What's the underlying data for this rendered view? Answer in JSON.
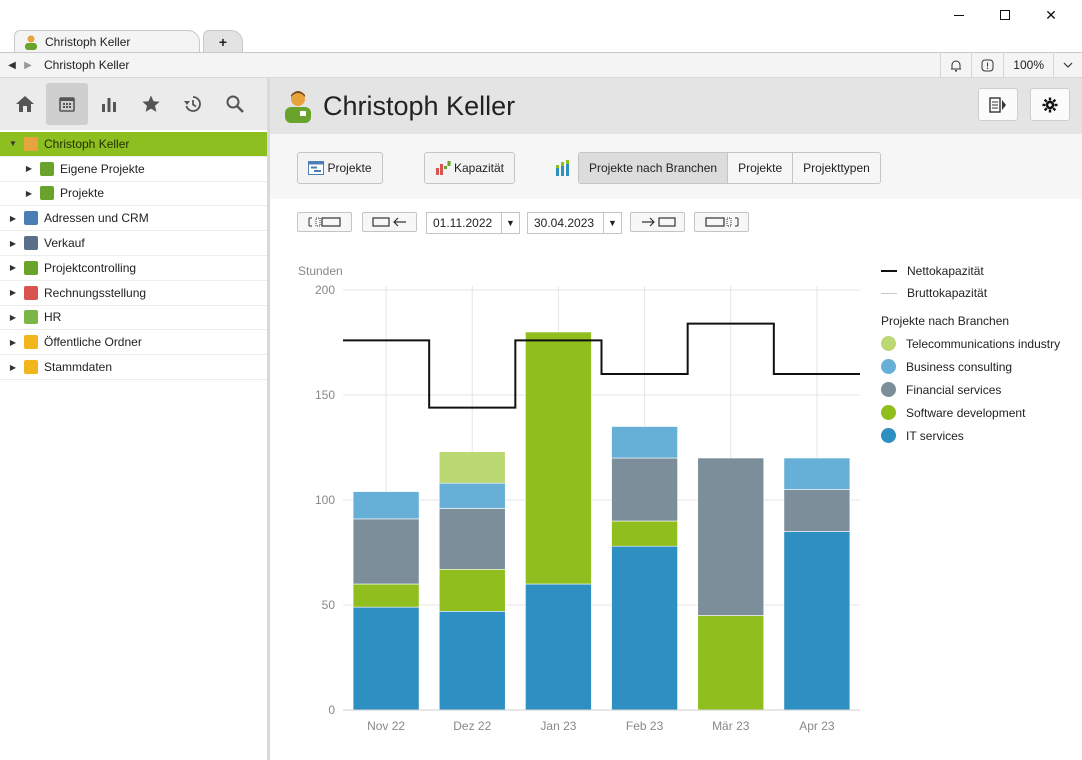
{
  "window": {
    "tab_title": "Christoph Keller",
    "tab_add": "+",
    "address": "Christoph Keller",
    "zoom": "100%",
    "close": "✕"
  },
  "sidebar": {
    "tools": [
      {
        "name": "home-icon"
      },
      {
        "name": "calendar-icon"
      },
      {
        "name": "bar-chart-icon"
      },
      {
        "name": "star-icon"
      },
      {
        "name": "history-icon"
      },
      {
        "name": "search-icon"
      }
    ],
    "items": [
      {
        "label": "Christoph Keller",
        "level": 0,
        "expanded": true,
        "selected": true,
        "icon": "person-icon",
        "color": "#e6a33e"
      },
      {
        "label": "Eigene Projekte",
        "level": 1,
        "expanded": false,
        "selected": false,
        "icon": "project-icon",
        "color": "#6aa32b"
      },
      {
        "label": "Projekte",
        "level": 1,
        "expanded": false,
        "selected": false,
        "icon": "project-icon",
        "color": "#6aa32b"
      },
      {
        "label": "Adressen und CRM",
        "level": 0,
        "expanded": false,
        "selected": false,
        "icon": "contacts-icon",
        "color": "#4a7fb5"
      },
      {
        "label": "Verkauf",
        "level": 0,
        "expanded": false,
        "selected": false,
        "icon": "sales-icon",
        "color": "#5a6f8a"
      },
      {
        "label": "Projektcontrolling",
        "level": 0,
        "expanded": false,
        "selected": false,
        "icon": "controlling-icon",
        "color": "#6aa32b"
      },
      {
        "label": "Rechnungsstellung",
        "level": 0,
        "expanded": false,
        "selected": false,
        "icon": "invoice-icon",
        "color": "#d9534f"
      },
      {
        "label": "HR",
        "level": 0,
        "expanded": false,
        "selected": false,
        "icon": "hr-icon",
        "color": "#7ab648"
      },
      {
        "label": "Öffentliche Ordner",
        "level": 0,
        "expanded": false,
        "selected": false,
        "icon": "folder-icon",
        "color": "#f2b51c"
      },
      {
        "label": "Stammdaten",
        "level": 0,
        "expanded": false,
        "selected": false,
        "icon": "folder-icon",
        "color": "#f2b51c"
      }
    ]
  },
  "main": {
    "title": "Christoph Keller",
    "toolbar": {
      "projekte_btn": "Projekte",
      "kapazitaet_btn": "Kapazität",
      "segments": [
        "Projekte nach Branchen",
        "Projekte",
        "Projekttypen"
      ],
      "active_segment": 0
    },
    "date_from": "01.11.2022",
    "date_to": "30.04.2023"
  },
  "chart_data": {
    "type": "bar",
    "stacked": true,
    "ylabel": "Stunden",
    "ylim": [
      0,
      200
    ],
    "yticks": [
      0,
      50,
      100,
      150,
      200
    ],
    "grid": true,
    "legend_placement": "right",
    "categories": [
      "Nov 22",
      "Dez 22",
      "Jan 23",
      "Feb 23",
      "Mär 23",
      "Apr 23"
    ],
    "series_group_title": "Projekte nach Branchen",
    "series": [
      {
        "name": "IT services",
        "color": "#2e8fc2",
        "values": [
          49,
          47,
          60,
          78,
          0,
          85
        ]
      },
      {
        "name": "Software development",
        "color": "#8fbe1e",
        "values": [
          11,
          20,
          120,
          12,
          45,
          0
        ]
      },
      {
        "name": "Financial services",
        "color": "#7d8e9b",
        "values": [
          31,
          29,
          0,
          30,
          75,
          20
        ]
      },
      {
        "name": "Business consulting",
        "color": "#66afd6",
        "values": [
          13,
          12,
          0,
          15,
          0,
          15
        ]
      },
      {
        "name": "Telecommunications industry",
        "color": "#bcd874",
        "values": [
          0,
          15,
          0,
          0,
          0,
          0
        ]
      }
    ],
    "lines": [
      {
        "name": "Nettokapazität",
        "color": "#111111",
        "step": true,
        "values": [
          176,
          144,
          176,
          160,
          184,
          160
        ]
      },
      {
        "name": "Bruttokapazität",
        "color": "#c9c9c9",
        "step": true,
        "values": []
      }
    ]
  }
}
